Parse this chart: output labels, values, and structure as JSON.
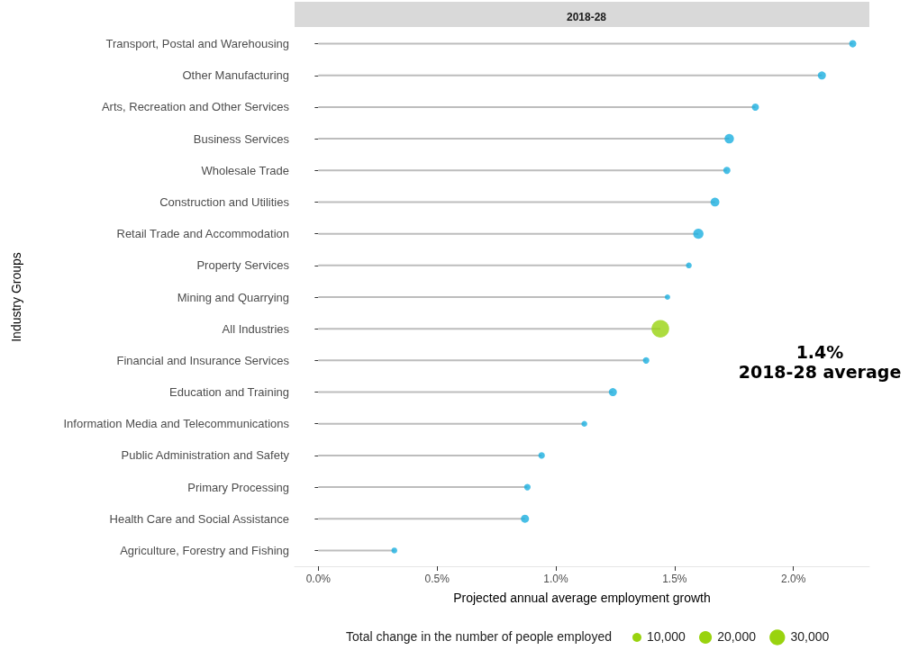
{
  "chart_data": {
    "type": "lollipop",
    "orientation": "horizontal",
    "title": "2018-28",
    "xlabel": "Projected annual average employment growth",
    "ylabel": "Industry Groups",
    "categories": [
      "Transport, Postal and Warehousing",
      "Other Manufacturing",
      "Arts, Recreation and Other Services",
      "Business Services",
      "Wholesale Trade",
      "Construction and Utilities",
      "Retail Trade and Accommodation",
      "Property Services",
      "Mining and Quarrying",
      "All Industries",
      "Financial and Insurance Services",
      "Education and Training",
      "Information Media and Telecommunications",
      "Public Administration and Safety",
      "Primary Processing",
      "Health Care and Social Assistance",
      "Agriculture, Forestry and Fishing"
    ],
    "values": [
      2.25,
      2.12,
      1.84,
      1.73,
      1.72,
      1.67,
      1.6,
      1.56,
      1.47,
      1.44,
      1.38,
      1.24,
      1.12,
      0.94,
      0.88,
      0.87,
      0.32
    ],
    "sizes": [
      6400,
      8000,
      6400,
      11000,
      6400,
      9600,
      13000,
      4200,
      3600,
      38000,
      5300,
      8000,
      4200,
      5300,
      5300,
      8000,
      4200
    ],
    "colors": [
      "#1aafe0",
      "#1aafe0",
      "#1aafe0",
      "#1aafe0",
      "#1aafe0",
      "#1aafe0",
      "#1aafe0",
      "#1aafe0",
      "#1aafe0",
      "#99d30f",
      "#1aafe0",
      "#1aafe0",
      "#1aafe0",
      "#1aafe0",
      "#1aafe0",
      "#1aafe0",
      "#1aafe0"
    ],
    "size_legend": [
      {
        "value": 10000,
        "label": "10,000"
      },
      {
        "value": 20000,
        "label": "20,000"
      },
      {
        "value": 30000,
        "label": "30,000"
      }
    ],
    "legend_title": "Total change in the number of people employed",
    "xlim": [
      -0.1,
      2.32
    ],
    "xticks": [
      {
        "value": 0,
        "label": "0.0%"
      },
      {
        "value": 0.5,
        "label": "0.5%"
      },
      {
        "value": 1,
        "label": "1.0%"
      },
      {
        "value": 1.5,
        "label": "1.5%"
      },
      {
        "value": 2,
        "label": "2.0%"
      }
    ],
    "grid": false,
    "annotations": [
      "1.4%\n2018-28 average"
    ]
  }
}
